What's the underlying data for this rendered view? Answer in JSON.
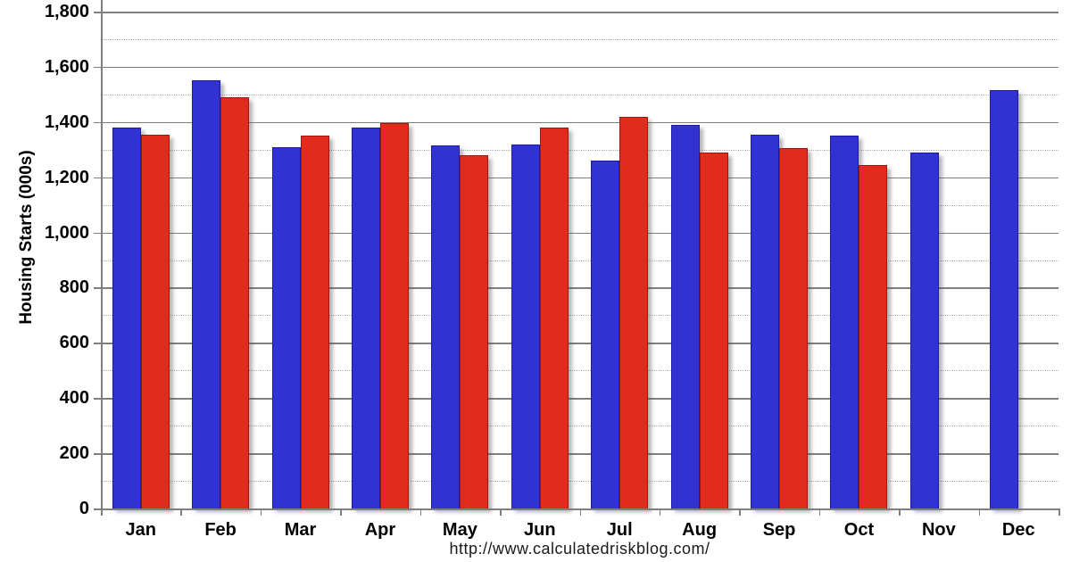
{
  "chart_data": {
    "type": "bar",
    "title": "",
    "xlabel": "",
    "ylabel": "Housing Starts (000s)",
    "ylim": [
      0,
      1800
    ],
    "y_major_step": 200,
    "y_minor_step": 100,
    "grid": true,
    "legend_position": "none",
    "categories": [
      "Jan",
      "Feb",
      "Mar",
      "Apr",
      "May",
      "Jun",
      "Jul",
      "Aug",
      "Sep",
      "Oct",
      "Nov",
      "Dec"
    ],
    "series": [
      {
        "name": "blue-series",
        "fill_color": "#3231D2",
        "border_color": "#1E1C9E",
        "values": [
          1380,
          1550,
          1310,
          1380,
          1315,
          1320,
          1260,
          1390,
          1355,
          1350,
          1290,
          1515
        ]
      },
      {
        "name": "red-series",
        "fill_color": "#E02B1D",
        "border_color": "#9E1810",
        "values": [
          1355,
          1490,
          1350,
          1395,
          1280,
          1380,
          1420,
          1290,
          1305,
          1245,
          null,
          null
        ]
      }
    ],
    "y_tick_labels": [
      "0",
      "200",
      "400",
      "600",
      "800",
      "1,000",
      "1,200",
      "1,400",
      "1,600",
      "1,800"
    ]
  },
  "footer": {
    "url": "http://www.calculatedriskblog.com/"
  }
}
